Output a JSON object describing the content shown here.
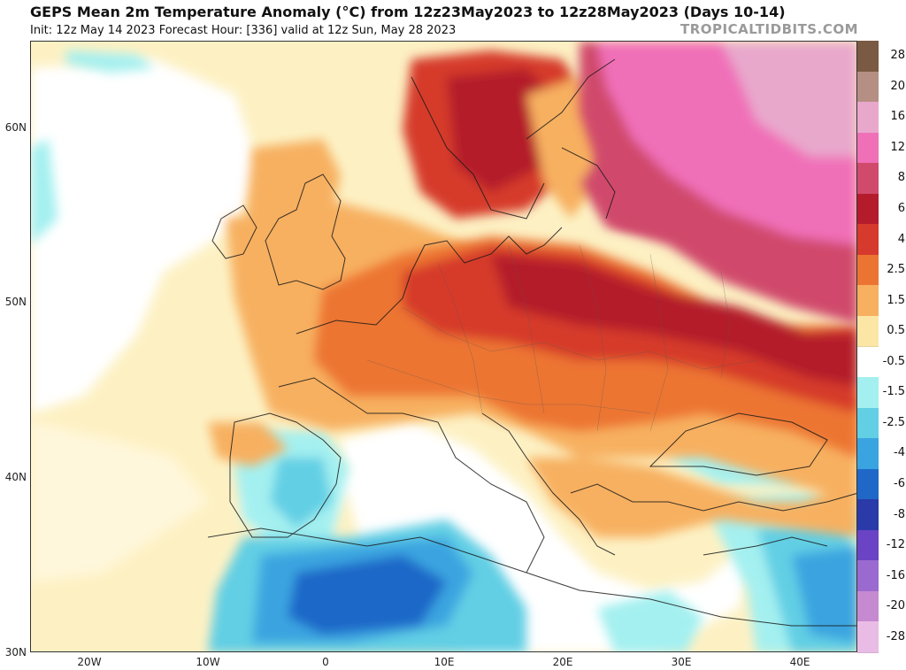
{
  "header": {
    "title": "GEPS Mean 2m Temperature Anomaly (°C) from 12z23May2023 to 12z28May2023 (Days 10-14)",
    "subtitle": "Init: 12z May 14 2023    Forecast Hour: [336]    valid at 12z Sun, May 28 2023",
    "brand": "TROPICALTIDBITS.COM"
  },
  "axes": {
    "lat_ticks": [
      "60N",
      "50N",
      "40N",
      "30N"
    ],
    "lon_ticks": [
      "20W",
      "10W",
      "0",
      "10E",
      "20E",
      "30E",
      "40E"
    ]
  },
  "legend": {
    "levels": [
      {
        "label": "28",
        "color": "#7a5a42"
      },
      {
        "label": "20",
        "color": "#b68f84"
      },
      {
        "label": "16",
        "color": "#e8a8cc"
      },
      {
        "label": "12",
        "color": "#f070b8"
      },
      {
        "label": "8",
        "color": "#d04a6c"
      },
      {
        "label": "6",
        "color": "#b41c2c"
      },
      {
        "label": "4",
        "color": "#d63a2c"
      },
      {
        "label": "2.5",
        "color": "#ec7432"
      },
      {
        "label": "1.5",
        "color": "#f7b060"
      },
      {
        "label": "0.5",
        "color": "#fbe6a6"
      },
      {
        "label": "-0.5",
        "color": "#ffffff"
      },
      {
        "label": "-1.5",
        "color": "#a4f0f0"
      },
      {
        "label": "-2.5",
        "color": "#62cfe4"
      },
      {
        "label": "-4",
        "color": "#3aa4e0"
      },
      {
        "label": "-6",
        "color": "#1f68c8"
      },
      {
        "label": "-8",
        "color": "#2a3aa8"
      },
      {
        "label": "-12",
        "color": "#6a44c4"
      },
      {
        "label": "-16",
        "color": "#9a6ad0"
      },
      {
        "label": "-20",
        "color": "#c68ad0"
      },
      {
        "label": "-28",
        "color": "#e9bce6"
      }
    ]
  }
}
